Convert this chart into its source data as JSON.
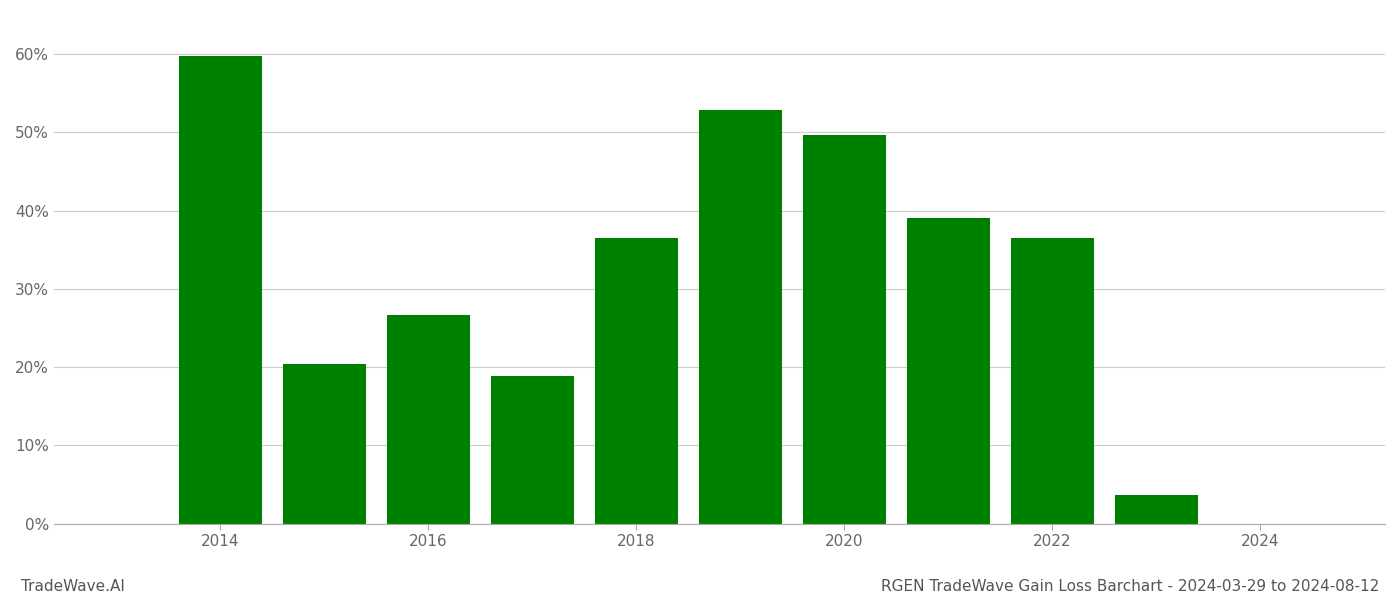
{
  "years": [
    2014,
    2015,
    2016,
    2017,
    2018,
    2019,
    2020,
    2021,
    2022,
    2023
  ],
  "values": [
    59.8,
    20.4,
    26.7,
    18.9,
    36.5,
    52.8,
    49.6,
    39.1,
    36.5,
    3.7
  ],
  "bar_color": "#008000",
  "background_color": "#ffffff",
  "grid_color": "#cccccc",
  "title": "RGEN TradeWave Gain Loss Barchart - 2024-03-29 to 2024-08-12",
  "watermark": "TradeWave.AI",
  "ylim": [
    0,
    65
  ],
  "yticks": [
    0,
    10,
    20,
    30,
    40,
    50,
    60
  ],
  "xlim": [
    2012.4,
    2025.2
  ],
  "xticks": [
    2014,
    2016,
    2018,
    2020,
    2022,
    2024
  ],
  "bar_width": 0.8,
  "title_fontsize": 11,
  "watermark_fontsize": 11,
  "tick_fontsize": 11
}
